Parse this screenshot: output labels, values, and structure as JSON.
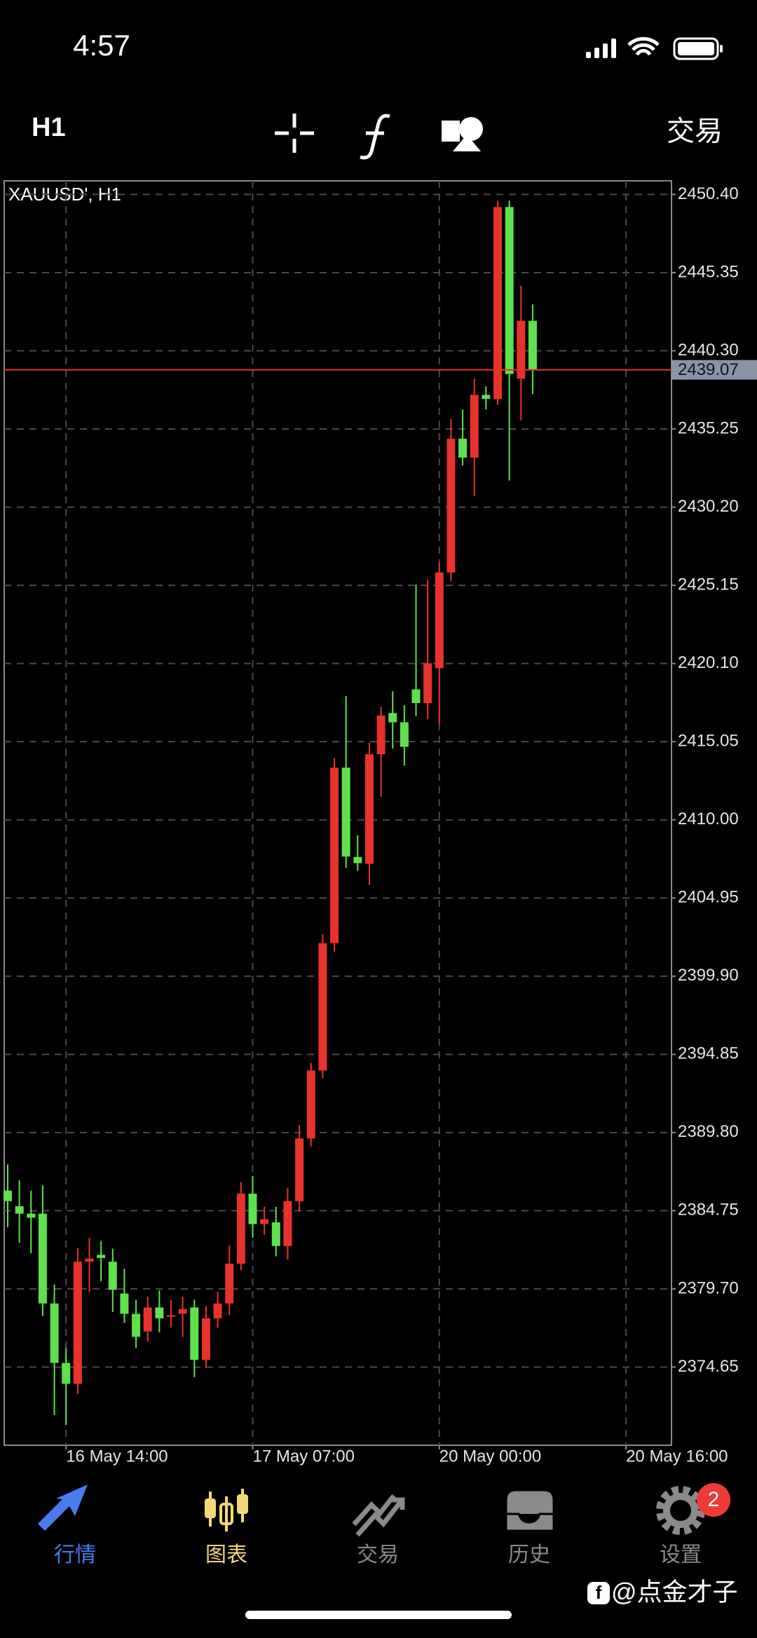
{
  "status": {
    "time": "4:57"
  },
  "toolbar": {
    "timeframe": "H1",
    "trade": "交易"
  },
  "chart_data": {
    "type": "candlestick",
    "title": "XAUUSD', H1",
    "x": [
      0,
      1,
      2,
      3,
      4,
      5,
      6,
      7,
      8,
      9,
      10,
      11,
      12,
      13,
      14,
      15,
      16,
      17,
      18,
      19,
      20,
      21,
      22,
      23,
      24,
      25,
      26,
      27,
      28,
      29,
      30,
      31,
      32,
      33,
      34,
      35,
      36,
      37,
      38,
      39,
      40,
      41,
      42,
      43,
      44,
      45
    ],
    "open": [
      2386.05,
      2385.04,
      2384.56,
      2384.56,
      2378.76,
      2374.92,
      2373.57,
      2381.46,
      2381.9,
      2381.46,
      2379.4,
      2378.09,
      2376.95,
      2378.5,
      2377.9,
      2378.1,
      2378.5,
      2375.12,
      2377.8,
      2378.76,
      2381.33,
      2385.85,
      2383.89,
      2384.0,
      2382.47,
      2385.37,
      2389.42,
      2393.81,
      2402.04,
      2413.37,
      2407.6,
      2407.16,
      2414.24,
      2416.9,
      2416.3,
      2418.43,
      2417.55,
      2419.8,
      2425.98,
      2434.62,
      2433.4,
      2437.45,
      2437.18,
      2449.59,
      2438.5,
      2442.24
    ],
    "high": [
      2387.74,
      2386.72,
      2386.05,
      2386.4,
      2379.98,
      2375.9,
      2382.34,
      2383.0,
      2382.8,
      2382.3,
      2381.0,
      2379.0,
      2379.2,
      2379.6,
      2379.0,
      2379.2,
      2379.0,
      2378.6,
      2379.5,
      2382.5,
      2386.6,
      2387.0,
      2385.0,
      2385.0,
      2386.2,
      2390.3,
      2394.3,
      2402.6,
      2414.0,
      2418.0,
      2409.0,
      2415.0,
      2417.3,
      2418.3,
      2417.4,
      2425.2,
      2425.5,
      2426.6,
      2435.9,
      2436.5,
      2438.5,
      2438.0,
      2450.0,
      2450.0,
      2444.5,
      2443.3
    ],
    "low": [
      2383.69,
      2382.68,
      2382.0,
      2377.95,
      2371.55,
      2370.9,
      2372.9,
      2379.5,
      2380.2,
      2378.2,
      2377.5,
      2375.9,
      2376.3,
      2376.9,
      2377.2,
      2376.6,
      2374.0,
      2374.6,
      2377.2,
      2378.0,
      2380.9,
      2383.0,
      2383.2,
      2381.8,
      2381.6,
      2384.7,
      2388.9,
      2393.3,
      2401.5,
      2406.9,
      2406.7,
      2405.8,
      2411.5,
      2414.6,
      2413.5,
      2416.7,
      2416.5,
      2416.2,
      2425.4,
      2432.9,
      2430.9,
      2436.5,
      2436.8,
      2431.92,
      2435.8,
      2437.5
    ],
    "close": [
      2385.37,
      2384.56,
      2384.3,
      2378.76,
      2374.92,
      2373.57,
      2381.46,
      2381.66,
      2381.7,
      2379.64,
      2378.09,
      2376.6,
      2378.5,
      2377.8,
      2378.0,
      2378.4,
      2375.12,
      2377.8,
      2378.76,
      2381.33,
      2385.85,
      2383.89,
      2384.2,
      2382.47,
      2385.37,
      2389.42,
      2393.81,
      2402.04,
      2413.37,
      2407.63,
      2407.2,
      2414.24,
      2416.74,
      2416.3,
      2414.72,
      2417.55,
      2420.11,
      2425.98,
      2434.62,
      2433.4,
      2437.45,
      2437.2,
      2449.59,
      2438.8,
      2442.24,
      2439.07
    ],
    "up_color": "#e8322c",
    "down_color": "#5fe04c",
    "current_price": 2439.07,
    "price_line_color": "#e8322c",
    "xlim": [
      -0.3,
      56.9
    ],
    "xticks": [
      {
        "value": 5,
        "label": "16 May 14:00"
      },
      {
        "value": 21,
        "label": "17 May 07:00"
      },
      {
        "value": 37,
        "label": "20 May 00:00"
      },
      {
        "value": 53,
        "label": "20 May 16:00"
      }
    ],
    "ylim": [
      2369.6,
      2451.28
    ],
    "yticks": [
      {
        "value": 2450.4,
        "label": "2450.40"
      },
      {
        "value": 2445.35,
        "label": "2445.35"
      },
      {
        "value": 2440.3,
        "label": "2440.30"
      },
      {
        "value": 2435.25,
        "label": "2435.25"
      },
      {
        "value": 2430.2,
        "label": "2430.20"
      },
      {
        "value": 2425.15,
        "label": "2425.15"
      },
      {
        "value": 2420.1,
        "label": "2420.10"
      },
      {
        "value": 2415.05,
        "label": "2415.05"
      },
      {
        "value": 2410,
        "label": "2410.00"
      },
      {
        "value": 2404.95,
        "label": "2404.95"
      },
      {
        "value": 2399.9,
        "label": "2399.90"
      },
      {
        "value": 2394.85,
        "label": "2394.85"
      },
      {
        "value": 2389.8,
        "label": "2389.80"
      },
      {
        "value": 2384.75,
        "label": "2384.75"
      },
      {
        "value": 2379.7,
        "label": "2379.70"
      },
      {
        "value": 2374.65,
        "label": "2374.65"
      }
    ],
    "grid": true
  },
  "tabs": [
    {
      "label": "行情"
    },
    {
      "label": "图表"
    },
    {
      "label": "交易"
    },
    {
      "label": "历史"
    },
    {
      "label": "设置",
      "badge": "2"
    }
  ],
  "watermark": "@点金才子"
}
